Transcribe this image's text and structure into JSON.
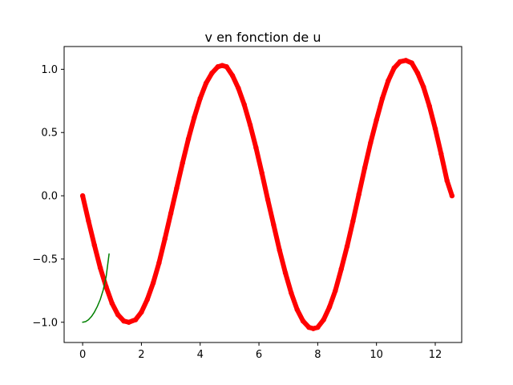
{
  "chart_data": {
    "type": "line",
    "title": "v en fonction de u",
    "xlabel": "",
    "ylabel": "",
    "xlim": [
      -0.63,
      12.9
    ],
    "ylim": [
      -1.16,
      1.18
    ],
    "x_ticks": [
      0,
      2,
      4,
      6,
      8,
      10,
      12
    ],
    "x_tick_labels": [
      "0",
      "2",
      "4",
      "6",
      "8",
      "10",
      "12"
    ],
    "y_ticks": [
      -1.0,
      -0.5,
      0.0,
      0.5,
      1.0
    ],
    "y_tick_labels": [
      "−1.0",
      "−0.5",
      "0.0",
      "0.5",
      "1.0"
    ],
    "grid": false,
    "series": [
      {
        "color": "#ff0000",
        "style": "thick-dotted",
        "x": [
          0,
          0.2,
          0.4,
          0.6,
          0.8,
          1.0,
          1.2,
          1.4,
          1.57,
          1.8,
          2.0,
          2.2,
          2.4,
          2.6,
          2.8,
          3.0,
          3.2,
          3.4,
          3.6,
          3.8,
          4.0,
          4.2,
          4.4,
          4.6,
          4.75,
          4.9,
          5.1,
          5.3,
          5.5,
          5.7,
          5.9,
          6.1,
          6.3,
          6.5,
          6.7,
          6.9,
          7.1,
          7.3,
          7.5,
          7.7,
          7.85,
          8.0,
          8.2,
          8.4,
          8.6,
          8.8,
          9.0,
          9.2,
          9.4,
          9.6,
          9.8,
          10.0,
          10.2,
          10.4,
          10.6,
          10.8,
          11.0,
          11.2,
          11.4,
          11.6,
          11.8,
          12.0,
          12.2,
          12.4,
          12.57
        ],
        "y": [
          0.0,
          -0.2,
          -0.39,
          -0.57,
          -0.72,
          -0.85,
          -0.94,
          -0.99,
          -1.0,
          -0.98,
          -0.92,
          -0.82,
          -0.69,
          -0.53,
          -0.34,
          -0.14,
          0.06,
          0.26,
          0.45,
          0.62,
          0.77,
          0.89,
          0.97,
          1.02,
          1.03,
          1.02,
          0.95,
          0.85,
          0.72,
          0.56,
          0.38,
          0.18,
          -0.03,
          -0.23,
          -0.43,
          -0.61,
          -0.77,
          -0.9,
          -0.99,
          -1.04,
          -1.05,
          -1.04,
          -0.98,
          -0.88,
          -0.75,
          -0.58,
          -0.4,
          -0.2,
          0.01,
          0.22,
          0.42,
          0.6,
          0.77,
          0.91,
          1.01,
          1.06,
          1.07,
          1.05,
          0.97,
          0.86,
          0.71,
          0.53,
          0.33,
          0.12,
          0.0
        ]
      },
      {
        "color": "#008000",
        "style": "line",
        "x": [
          0,
          0.1,
          0.2,
          0.3,
          0.4,
          0.5,
          0.6,
          0.7,
          0.8,
          0.9
        ],
        "y": [
          -1.0,
          -0.995,
          -0.98,
          -0.955,
          -0.92,
          -0.875,
          -0.82,
          -0.745,
          -0.64,
          -0.46
        ]
      }
    ]
  }
}
